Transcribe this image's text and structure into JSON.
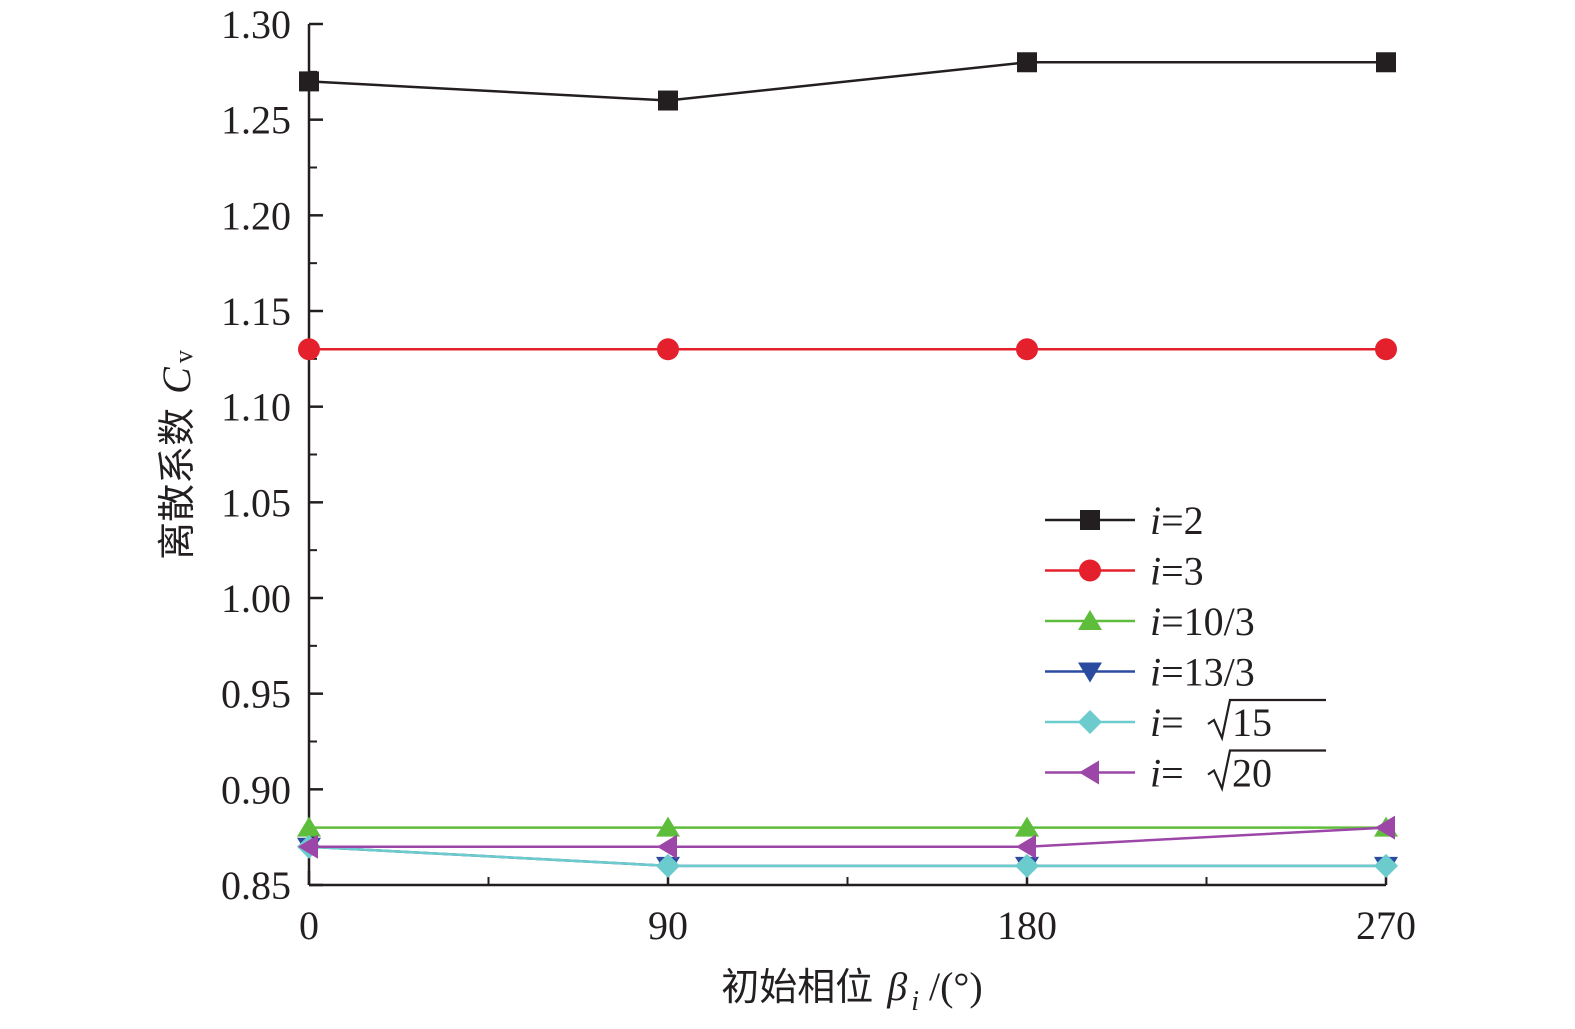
{
  "chart_data": {
    "type": "line",
    "x": [
      0,
      90,
      180,
      270
    ],
    "xticks": [
      "0",
      "90",
      "180",
      "270"
    ],
    "yticks": [
      "0.85",
      "0.90",
      "0.95",
      "1.00",
      "1.05",
      "1.10",
      "1.15",
      "1.20",
      "1.25",
      "1.30"
    ],
    "xlim": [
      0,
      270
    ],
    "ylim": [
      0.85,
      1.3
    ],
    "xlabel": {
      "text": "初始相位",
      "symbol": "β",
      "subscript": "i",
      "unit": "/(°)"
    },
    "ylabel": {
      "text": "离散系数",
      "symbol": "C",
      "subscript": "v"
    },
    "grid": false,
    "legend_position": "center-right",
    "series": [
      {
        "name": "i=2",
        "name_var": "i",
        "name_rest": "=2",
        "sqrt": false,
        "color": "#231f20",
        "marker": "square",
        "values": [
          1.27,
          1.26,
          1.28,
          1.28
        ]
      },
      {
        "name": "i=3",
        "name_var": "i",
        "name_rest": "=3",
        "sqrt": false,
        "color": "#e4202d",
        "marker": "circle",
        "values": [
          1.13,
          1.13,
          1.13,
          1.13
        ]
      },
      {
        "name": "i=10/3",
        "name_var": "i",
        "name_rest": "=10/3",
        "sqrt": false,
        "color": "#5fbd3c",
        "marker": "triangle-up",
        "values": [
          0.88,
          0.88,
          0.88,
          0.88
        ]
      },
      {
        "name": "i=13/3",
        "name_var": "i",
        "name_rest": "=13/3",
        "sqrt": false,
        "color": "#2b4ba0",
        "marker": "triangle-down",
        "values": [
          0.87,
          0.86,
          0.86,
          0.86
        ]
      },
      {
        "name": "i=√15",
        "name_var": "i",
        "name_rest": "=",
        "sqrt": true,
        "radicand": "15",
        "color": "#6ccbcc",
        "marker": "diamond",
        "values": [
          0.87,
          0.86,
          0.86,
          0.86
        ]
      },
      {
        "name": "i=√20",
        "name_var": "i",
        "name_rest": "=",
        "sqrt": true,
        "radicand": "20",
        "color": "#9c46a8",
        "marker": "triangle-left",
        "values": [
          0.87,
          0.87,
          0.87,
          0.88
        ]
      }
    ]
  }
}
